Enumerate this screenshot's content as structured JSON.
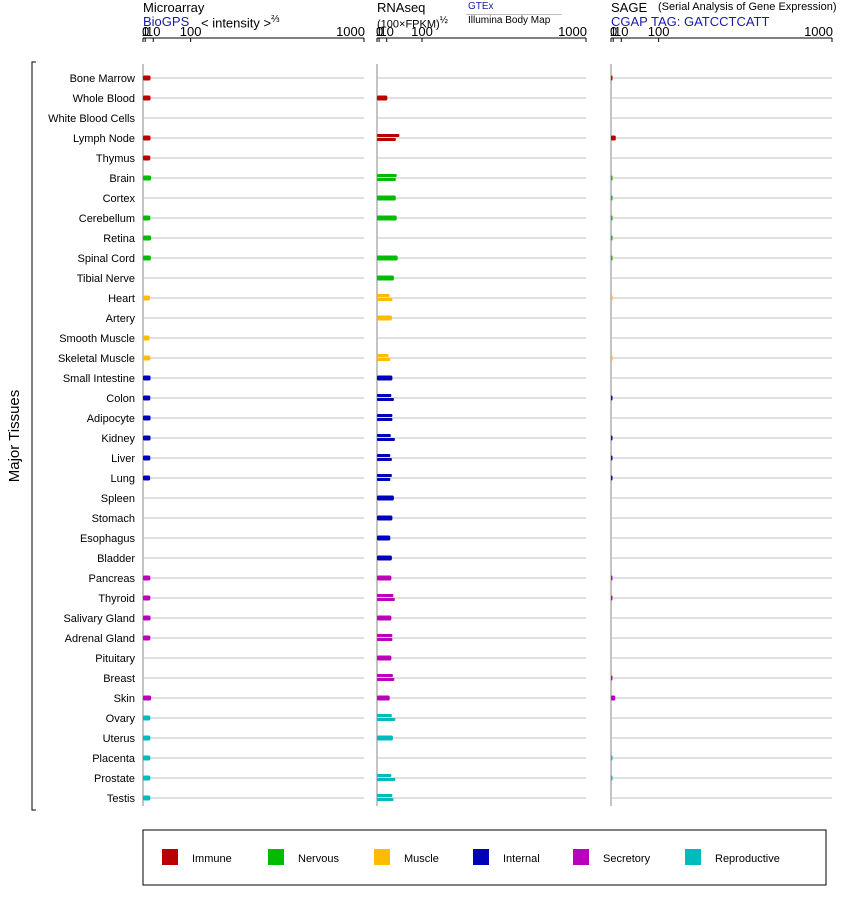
{
  "chart_data": {
    "type": "bar",
    "orientation": "horizontal",
    "group_label": "Major Tissues",
    "x_scale": "power-2/3",
    "x_ticks": [
      "0",
      "1",
      "10",
      "100",
      "1000"
    ],
    "x_tick_values": [
      0,
      1,
      10,
      100,
      1000
    ],
    "xlim": [
      0,
      1000
    ],
    "categories": [
      "Bone Marrow",
      "Whole Blood",
      "White Blood Cells",
      "Lymph Node",
      "Thymus",
      "Brain",
      "Cortex",
      "Cerebellum",
      "Retina",
      "Spinal Cord",
      "Tibial Nerve",
      "Heart",
      "Artery",
      "Smooth Muscle",
      "Skeletal Muscle",
      "Small Intestine",
      "Colon",
      "Adipocyte",
      "Kidney",
      "Liver",
      "Lung",
      "Spleen",
      "Stomach",
      "Esophagus",
      "Bladder",
      "Pancreas",
      "Thyroid",
      "Salivary Gland",
      "Adrenal Gland",
      "Pituitary",
      "Breast",
      "Skin",
      "Ovary",
      "Uterus",
      "Placenta",
      "Prostate",
      "Testis"
    ],
    "category_groups": [
      "Immune",
      "Immune",
      "Immune",
      "Immune",
      "Immune",
      "Nervous",
      "Nervous",
      "Nervous",
      "Nervous",
      "Nervous",
      "Nervous",
      "Muscle",
      "Muscle",
      "Muscle",
      "Muscle",
      "Internal",
      "Internal",
      "Internal",
      "Internal",
      "Internal",
      "Internal",
      "Internal",
      "Internal",
      "Internal",
      "Internal",
      "Secretory",
      "Secretory",
      "Secretory",
      "Secretory",
      "Secretory",
      "Secretory",
      "Secretory",
      "Reproductive",
      "Reproductive",
      "Reproductive",
      "Reproductive",
      "Reproductive"
    ],
    "panels": [
      {
        "title": "Microarray",
        "source": "BioGPS",
        "unit": "< intensity >",
        "unit_exponent": "⅔",
        "values": [
          [
            6.3
          ],
          [
            6.3
          ],
          [],
          [
            6.3
          ],
          [
            6.0
          ],
          [
            7.0
          ],
          [],
          [
            6.0
          ],
          [
            7.0
          ],
          [
            6.7
          ],
          [],
          [
            5.5
          ],
          [],
          [
            5.2
          ],
          [
            6.0
          ],
          [
            6.3
          ],
          [
            6.0
          ],
          [
            6.3
          ],
          [
            6.3
          ],
          [
            6.0
          ],
          [
            5.8
          ],
          [],
          [],
          [],
          [],
          [
            6.0
          ],
          [
            6.0
          ],
          [
            6.3
          ],
          [
            6.0
          ],
          [],
          [],
          [
            7.0
          ],
          [
            6.0
          ],
          [
            6.0
          ],
          [
            6.0
          ],
          [
            6.0
          ],
          [
            6.0
          ]
        ]
      },
      {
        "title": "RNAseq",
        "unit": "(100×FPKM)",
        "unit_exponent": "½",
        "legend_top": "GTEx",
        "legend_bottom": "Illumina Body Map",
        "values": [
          [],
          [
            11
          ],
          [],
          [
            35,
            27
          ],
          [],
          [
            29,
            27
          ],
          [
            27
          ],
          [
            29
          ],
          [],
          [
            31
          ],
          [
            23
          ],
          [
            15,
            20
          ],
          [
            19
          ],
          [],
          [
            13,
            16
          ],
          [
            20
          ],
          [
            18,
            23
          ],
          [
            20,
            20
          ],
          [
            17,
            25
          ],
          [
            16,
            19
          ],
          [
            19,
            16
          ],
          [
            23
          ],
          [
            20
          ],
          [
            16
          ],
          [
            19
          ],
          [
            18
          ],
          [
            22,
            25
          ],
          [
            18
          ],
          [
            20,
            20
          ],
          [
            18
          ],
          [
            21,
            24
          ],
          [
            15
          ],
          [
            19,
            26
          ],
          [
            21
          ],
          [],
          [
            18,
            26
          ],
          [
            20,
            22
          ]
        ]
      },
      {
        "title": "SAGE",
        "subtitle": "(Serial Analysis of Gene Expression)",
        "source": "CGAP TAG: GATCCTCATT",
        "values": [
          [
            0.02
          ],
          [],
          [],
          [
            3.2
          ],
          [],
          [
            0.02
          ],
          [
            0.02
          ],
          [
            0.02
          ],
          [
            0.02
          ],
          [
            0.02
          ],
          [],
          [
            0.01
          ],
          [],
          [],
          [
            0.01
          ],
          [],
          [
            0.03
          ],
          [],
          [
            0.03
          ],
          [
            0.03
          ],
          [
            0.03
          ],
          [],
          [],
          [],
          [],
          [
            0.02
          ],
          [
            0.02
          ],
          [],
          [],
          [],
          [
            0.02
          ],
          [
            2.7
          ],
          [],
          [],
          [
            0.01
          ],
          [
            0.01
          ],
          []
        ]
      }
    ],
    "legend": [
      {
        "name": "Immune",
        "color": "#bb0000"
      },
      {
        "name": "Nervous",
        "color": "#00bb00"
      },
      {
        "name": "Muscle",
        "color": "#ffbb00"
      },
      {
        "name": "Internal",
        "color": "#0000bb"
      },
      {
        "name": "Secretory",
        "color": "#bb00bb"
      },
      {
        "name": "Reproductive",
        "color": "#00bbbb"
      }
    ],
    "legend_placement": "bottom",
    "grid": true
  }
}
